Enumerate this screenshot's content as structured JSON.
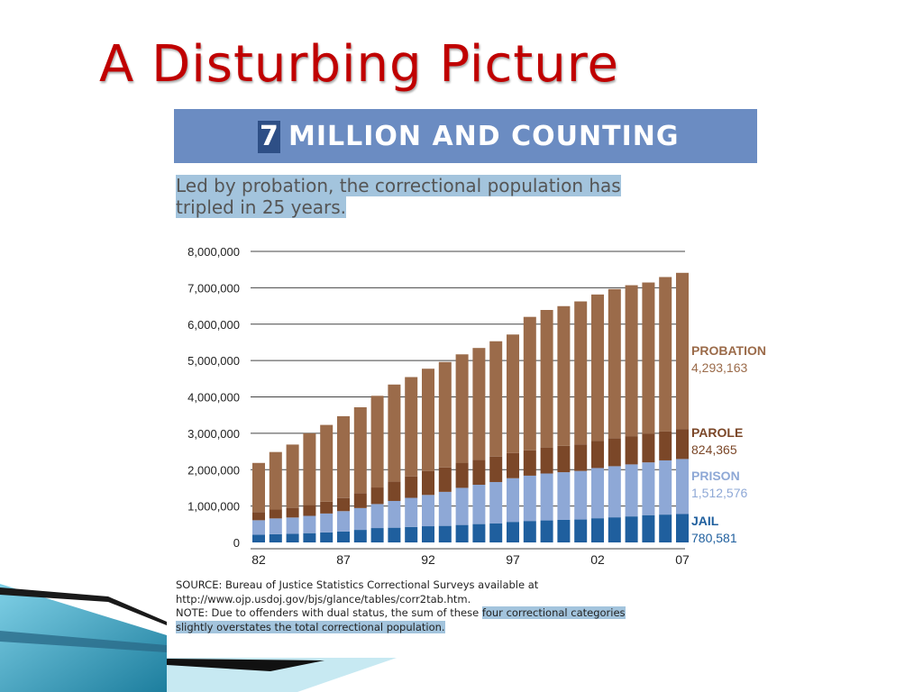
{
  "slide": {
    "title": "A Disturbing Picture"
  },
  "figure": {
    "banner_number": "7",
    "banner_text": "MILLION AND COUNTING",
    "subtitle_line1": "Led by probation, the correctional population has",
    "subtitle_line2": "tripled in 25 years.",
    "source": "SOURCE:  Bureau of Justice Statistics Correctional Surveys available at",
    "source_url": "http://www.ojp.usdoj.gov/bjs/glance/tables/corr2tab.htm.",
    "note_plain": "NOTE: Due to offenders with dual status, the sum of these ",
    "note_highlight_1": "four correctional categories",
    "note_highlight_2": "slightly overstates the total correctional population."
  },
  "colors": {
    "title_red": "#c00000",
    "banner": "#6b8cc2",
    "highlight": "#a3c4dd",
    "jail": "#1f5f9e",
    "prison": "#8ea8d6",
    "parole": "#7b4728",
    "probation": "#9b6b4a"
  },
  "chart_data": {
    "type": "bar",
    "stacked": true,
    "categories": [
      "1982",
      "1983",
      "1984",
      "1985",
      "1986",
      "1987",
      "1988",
      "1989",
      "1990",
      "1991",
      "1992",
      "1993",
      "1994",
      "1995",
      "1996",
      "1997",
      "1998",
      "1999",
      "2000",
      "2001",
      "2002",
      "2003",
      "2004",
      "2005",
      "2006",
      "2007"
    ],
    "tick_labels": [
      {
        "label": "82",
        "index": 0
      },
      {
        "label": "87",
        "index": 5
      },
      {
        "label": "92",
        "index": 10
      },
      {
        "label": "97",
        "index": 15
      },
      {
        "label": "02",
        "index": 20
      },
      {
        "label": "07",
        "index": 25
      }
    ],
    "y_ticks": [
      {
        "value": 0,
        "label": "0"
      },
      {
        "value": 1000000,
        "label": "1,000,000"
      },
      {
        "value": 2000000,
        "label": "2,000,000"
      },
      {
        "value": 3000000,
        "label": "3,000,000"
      },
      {
        "value": 4000000,
        "label": "4,000,000"
      },
      {
        "value": 5000000,
        "label": "5,000,000"
      },
      {
        "value": 6000000,
        "label": "6,000,000"
      },
      {
        "value": 7000000,
        "label": "7,000,000"
      },
      {
        "value": 8000000,
        "label": "8,000,000"
      }
    ],
    "ylim": [
      0,
      8000000
    ],
    "grid": true,
    "legend_placement": "right",
    "series": [
      {
        "name": "JAIL",
        "value_label": "780,581",
        "color": "#1f5f9e",
        "values": [
          210000,
          225000,
          235000,
          255000,
          275000,
          300000,
          345000,
          395000,
          405000,
          425000,
          445000,
          455000,
          480000,
          505000,
          520000,
          565000,
          590000,
          605000,
          620000,
          630000,
          665000,
          690000,
          715000,
          750000,
          765000,
          780581
        ]
      },
      {
        "name": "PRISON",
        "value_label": "1,512,576",
        "color": "#8ea8d6",
        "values": [
          400000,
          435000,
          450000,
          475000,
          520000,
          560000,
          600000,
          660000,
          735000,
          800000,
          860000,
          935000,
          1020000,
          1080000,
          1140000,
          1200000,
          1245000,
          1290000,
          1310000,
          1335000,
          1380000,
          1405000,
          1430000,
          1450000,
          1490000,
          1512576
        ]
      },
      {
        "name": "PAROLE",
        "value_label": "824,365",
        "color": "#7b4728",
        "values": [
          225000,
          245000,
          265000,
          300000,
          325000,
          360000,
          410000,
          455000,
          530000,
          590000,
          660000,
          670000,
          690000,
          680000,
          700000,
          690000,
          695000,
          715000,
          725000,
          730000,
          750000,
          770000,
          775000,
          785000,
          800000,
          824365
        ]
      },
      {
        "name": "PROBATION",
        "value_label": "4,293,163",
        "color": "#9b6b4a",
        "values": [
          1350000,
          1580000,
          1740000,
          1970000,
          2110000,
          2250000,
          2360000,
          2520000,
          2670000,
          2730000,
          2810000,
          2900000,
          2980000,
          3080000,
          3170000,
          3260000,
          3670000,
          3780000,
          3840000,
          3930000,
          4020000,
          4100000,
          4150000,
          4160000,
          4240000,
          4293163
        ]
      }
    ]
  }
}
